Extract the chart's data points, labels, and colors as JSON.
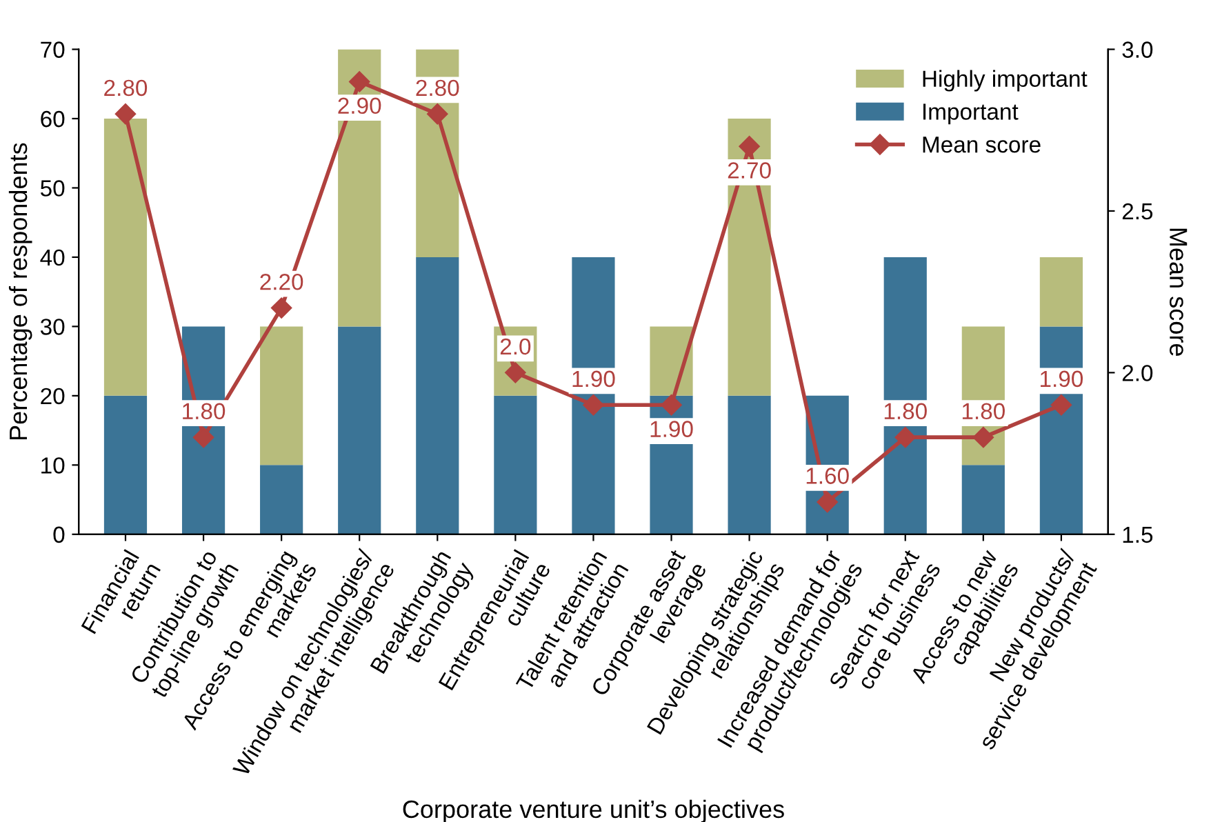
{
  "chart_data": {
    "type": "bar",
    "stacked": true,
    "xlabel": "Corporate venture unit’s objectives",
    "ylabel": "Percentage of respondents",
    "y2label": "Mean score",
    "categories": [
      "Financial\nreturn",
      "Contribution to\ntop-line growth",
      "Access to emerging\nmarkets",
      "Window on technologies/\nmarket intelligence",
      "Breakthrough\ntechnology",
      "Entrepreneurial\nculture",
      "Talent retention\nand attraction",
      "Corporate asset\nleverage",
      "Developing strategic\nrelationships",
      "Increased demand for\nproduct/technologies",
      "Search for next\ncore business",
      "Access to new\ncapabilities",
      "New products/\nservice development"
    ],
    "series": [
      {
        "name": "Important",
        "color": "#3b7496",
        "values": [
          20,
          30,
          10,
          30,
          40,
          20,
          40,
          20,
          20,
          20,
          40,
          10,
          30
        ]
      },
      {
        "name": "Highly important",
        "color": "#b7bc7c",
        "values": [
          40,
          0,
          20,
          40,
          30,
          10,
          0,
          10,
          40,
          0,
          0,
          20,
          10
        ]
      },
      {
        "name": "Mean score",
        "type": "line",
        "axis": "y2",
        "color": "#b0413e",
        "marker": "diamond",
        "line_style": "solid",
        "values": [
          2.8,
          1.8,
          2.2,
          2.9,
          2.8,
          2.0,
          1.9,
          1.9,
          2.7,
          1.6,
          1.8,
          1.8,
          1.9
        ],
        "value_labels": [
          "2.80",
          "1.80",
          "2.20",
          "2.90",
          "2.80",
          "2.0",
          "1.90",
          "1.90",
          "2.70",
          "1.60",
          "1.80",
          "1.80",
          "1.90"
        ]
      }
    ],
    "ylim": [
      0,
      70
    ],
    "yticks": [
      0,
      10,
      20,
      30,
      40,
      50,
      60,
      70
    ],
    "y2lim": [
      1.5,
      3.0
    ],
    "y2ticks": [
      {
        "value": 1.5,
        "label": "1.5"
      },
      {
        "value": 2.0,
        "label": "2.0"
      },
      {
        "value": 2.5,
        "label": "2.5"
      },
      {
        "value": 3.0,
        "label": "3.0"
      }
    ],
    "legend": "top right",
    "grid": false
  }
}
